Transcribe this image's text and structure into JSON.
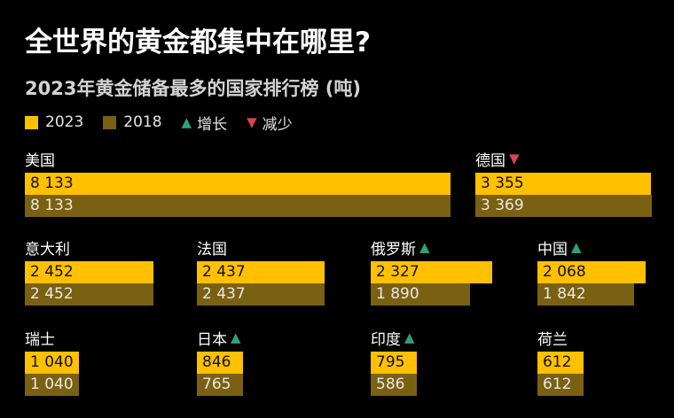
{
  "title": "全世界的黄金都集中在哪里?",
  "subtitle": "2023年黄金储备最多的国家排行榜 (吨)",
  "legend": {
    "y2023": "2023",
    "y2018": "2018",
    "increase": "增长",
    "decrease": "减少"
  },
  "colors": {
    "bar_2023": "#ffc000",
    "bar_2018": "#7a6011",
    "increase": "#2ea27c",
    "decrease": "#d9434d",
    "background": "#000000"
  },
  "chart_data": {
    "type": "bar",
    "title": "全世界的黄金都集中在哪里?",
    "subtitle": "2023年黄金储备最多的国家排行榜 (吨)",
    "unit": "吨",
    "series_names": [
      "2023",
      "2018"
    ],
    "countries": [
      {
        "name": "美国",
        "v2023": 8133,
        "v2018": 8133,
        "v2023_label": "8 133",
        "v2018_label": "8 133",
        "trend": "none"
      },
      {
        "name": "德国",
        "v2023": 3355,
        "v2018": 3369,
        "v2023_label": "3 355",
        "v2018_label": "3 369",
        "trend": "down"
      },
      {
        "name": "意大利",
        "v2023": 2452,
        "v2018": 2452,
        "v2023_label": "2 452",
        "v2018_label": "2 452",
        "trend": "none"
      },
      {
        "name": "法国",
        "v2023": 2437,
        "v2018": 2437,
        "v2023_label": "2 437",
        "v2018_label": "2 437",
        "trend": "none"
      },
      {
        "name": "俄罗斯",
        "v2023": 2327,
        "v2018": 1890,
        "v2023_label": "2 327",
        "v2018_label": "1 890",
        "trend": "up"
      },
      {
        "name": "中国",
        "v2023": 2068,
        "v2018": 1842,
        "v2023_label": "2 068",
        "v2018_label": "1 842",
        "trend": "up"
      },
      {
        "name": "瑞士",
        "v2023": 1040,
        "v2018": 1040,
        "v2023_label": "1 040",
        "v2018_label": "1 040",
        "trend": "none"
      },
      {
        "name": "日本",
        "v2023": 846,
        "v2018": 765,
        "v2023_label": "846",
        "v2018_label": "765",
        "trend": "up"
      },
      {
        "name": "印度",
        "v2023": 795,
        "v2018": 586,
        "v2023_label": "795",
        "v2018_label": "586",
        "trend": "up"
      },
      {
        "name": "荷兰",
        "v2023": 612,
        "v2018": 612,
        "v2023_label": "612",
        "v2018_label": "612",
        "trend": "none"
      }
    ]
  }
}
